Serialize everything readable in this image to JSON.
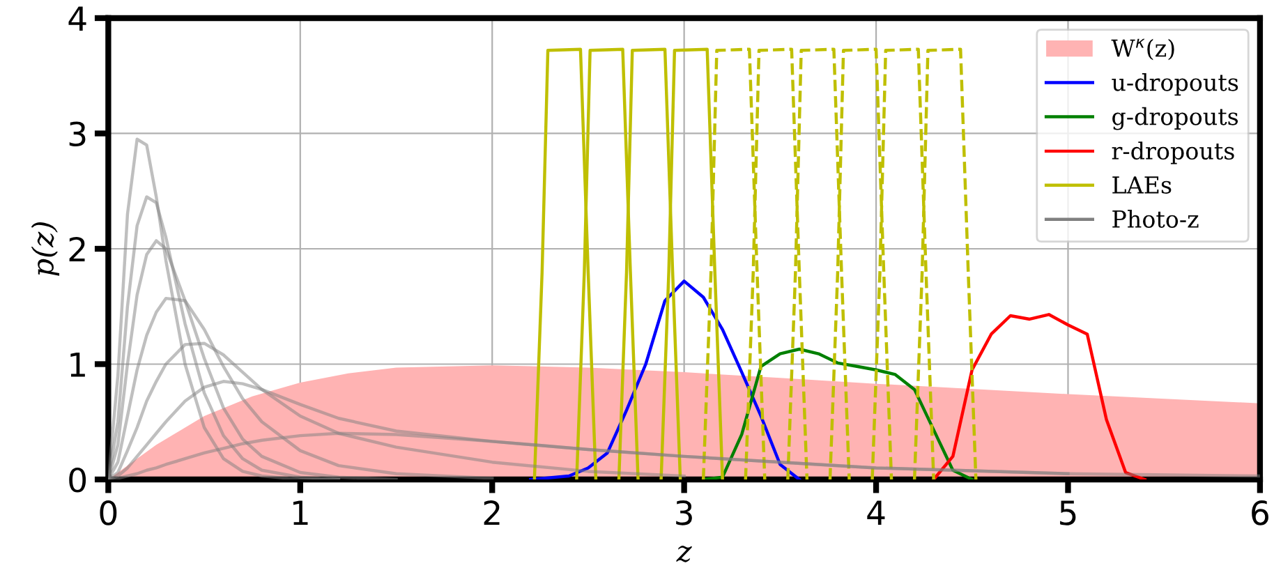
{
  "chart_data": {
    "type": "line",
    "xlabel": "z",
    "ylabel": "p(z)",
    "xlim": [
      0,
      6
    ],
    "ylim": [
      0,
      4
    ],
    "xticks": [
      0,
      1,
      2,
      3,
      4,
      5,
      6
    ],
    "yticks": [
      0,
      1,
      2,
      3,
      4
    ],
    "grid": true,
    "legend": "top right",
    "series": [
      {
        "type": "area",
        "name": "W$^{κ}$(z)",
        "color": "#ffb3b3",
        "x": [
          0,
          0.25,
          0.5,
          0.75,
          1,
          1.25,
          1.5,
          2,
          2.5,
          3,
          3.5,
          4,
          5,
          6
        ],
        "values": [
          0,
          0.3,
          0.55,
          0.72,
          0.84,
          0.92,
          0.97,
          0.99,
          0.97,
          0.93,
          0.88,
          0.83,
          0.74,
          0.66
        ]
      },
      {
        "type": "line",
        "name": "u-dropouts",
        "color": "#0000ff",
        "x": [
          2.2,
          2.4,
          2.5,
          2.6,
          2.7,
          2.8,
          2.9,
          3.0,
          3.1,
          3.2,
          3.3,
          3.4,
          3.5,
          3.6
        ],
        "values": [
          0,
          0.03,
          0.1,
          0.23,
          0.6,
          1.0,
          1.55,
          1.72,
          1.58,
          1.3,
          0.93,
          0.55,
          0.13,
          0
        ]
      },
      {
        "type": "line",
        "name": "g-dropouts",
        "color": "#008000",
        "x": [
          3.1,
          3.2,
          3.3,
          3.4,
          3.5,
          3.6,
          3.7,
          3.8,
          3.9,
          4.0,
          4.1,
          4.2,
          4.3,
          4.4,
          4.5
        ],
        "values": [
          0,
          0.02,
          0.39,
          0.98,
          1.09,
          1.13,
          1.09,
          1.01,
          0.98,
          0.95,
          0.91,
          0.78,
          0.43,
          0.08,
          0
        ]
      },
      {
        "type": "line",
        "name": "r-dropouts",
        "color": "#ff0000",
        "x": [
          4.3,
          4.4,
          4.5,
          4.6,
          4.7,
          4.8,
          4.9,
          5.0,
          5.1,
          5.2,
          5.3,
          5.4
        ],
        "values": [
          0,
          0.2,
          0.95,
          1.26,
          1.42,
          1.39,
          1.43,
          1.34,
          1.26,
          0.52,
          0.06,
          0
        ]
      },
      {
        "type": "line",
        "name": "LAEs",
        "color": "#bfbf00",
        "line_style": "solid",
        "x": [
          2.22,
          2.26,
          2.29,
          2.46,
          2.5,
          2.54
        ],
        "values": [
          0,
          1.8,
          3.72,
          3.73,
          1.8,
          0
        ]
      },
      {
        "type": "line",
        "color": "#bfbf00",
        "line_style": "solid",
        "x": [
          2.44,
          2.48,
          2.51,
          2.68,
          2.72,
          2.76
        ],
        "values": [
          0,
          1.8,
          3.72,
          3.73,
          1.8,
          0
        ]
      },
      {
        "type": "line",
        "color": "#bfbf00",
        "line_style": "solid",
        "x": [
          2.66,
          2.7,
          2.73,
          2.9,
          2.94,
          2.98
        ],
        "values": [
          0,
          1.8,
          3.72,
          3.73,
          1.8,
          0
        ]
      },
      {
        "type": "line",
        "color": "#bfbf00",
        "line_style": "solid",
        "x": [
          2.88,
          2.92,
          2.95,
          3.12,
          3.16,
          3.2
        ],
        "values": [
          0,
          1.8,
          3.72,
          3.73,
          1.8,
          0
        ]
      },
      {
        "type": "line",
        "color": "#bfbf00",
        "line_style": "dashed",
        "x": [
          3.1,
          3.14,
          3.17,
          3.34,
          3.38,
          3.42
        ],
        "values": [
          0,
          1.8,
          3.72,
          3.73,
          1.8,
          0
        ]
      },
      {
        "type": "line",
        "color": "#bfbf00",
        "line_style": "dashed",
        "x": [
          3.32,
          3.36,
          3.39,
          3.56,
          3.6,
          3.64
        ],
        "values": [
          0,
          1.8,
          3.72,
          3.73,
          1.8,
          0
        ]
      },
      {
        "type": "line",
        "color": "#bfbf00",
        "line_style": "dashed",
        "x": [
          3.54,
          3.58,
          3.61,
          3.78,
          3.82,
          3.86
        ],
        "values": [
          0,
          1.8,
          3.72,
          3.73,
          1.8,
          0
        ]
      },
      {
        "type": "line",
        "color": "#bfbf00",
        "line_style": "dashed",
        "x": [
          3.76,
          3.8,
          3.83,
          4.0,
          4.04,
          4.08
        ],
        "values": [
          0,
          1.8,
          3.72,
          3.73,
          1.8,
          0
        ]
      },
      {
        "type": "line",
        "color": "#bfbf00",
        "line_style": "dashed",
        "x": [
          3.98,
          4.02,
          4.05,
          4.22,
          4.26,
          4.3
        ],
        "values": [
          0,
          1.8,
          3.72,
          3.73,
          1.8,
          0
        ]
      },
      {
        "type": "line",
        "color": "#bfbf00",
        "line_style": "dashed",
        "x": [
          4.2,
          4.24,
          4.27,
          4.44,
          4.48,
          4.52
        ],
        "values": [
          0,
          1.8,
          3.72,
          3.73,
          1.8,
          0
        ]
      },
      {
        "type": "line",
        "name": "Photo-z",
        "color": "#808080",
        "x": [
          0,
          0.05,
          0.1,
          0.15,
          0.2,
          0.25,
          0.3,
          0.4,
          0.5,
          0.6,
          0.7,
          0.8,
          1.0,
          1.2
        ],
        "values": [
          0,
          0.9,
          2.3,
          2.95,
          2.9,
          2.45,
          1.9,
          1.0,
          0.45,
          0.18,
          0.07,
          0.03,
          0,
          0
        ]
      },
      {
        "type": "line",
        "color": "#808080",
        "x": [
          0,
          0.05,
          0.1,
          0.15,
          0.2,
          0.25,
          0.3,
          0.4,
          0.5,
          0.6,
          0.7,
          0.8,
          1.0,
          1.2
        ],
        "values": [
          0,
          0.5,
          1.5,
          2.2,
          2.45,
          2.4,
          2.1,
          1.35,
          0.75,
          0.38,
          0.18,
          0.08,
          0.02,
          0
        ]
      },
      {
        "type": "line",
        "color": "#808080",
        "x": [
          0,
          0.05,
          0.1,
          0.15,
          0.2,
          0.25,
          0.3,
          0.4,
          0.5,
          0.6,
          0.7,
          0.8,
          1.0,
          1.2,
          1.5
        ],
        "values": [
          0,
          0.3,
          1.0,
          1.6,
          1.95,
          2.07,
          2.0,
          1.55,
          1.05,
          0.62,
          0.35,
          0.2,
          0.06,
          0.02,
          0
        ]
      },
      {
        "type": "line",
        "color": "#808080",
        "x": [
          0,
          0.05,
          0.1,
          0.15,
          0.2,
          0.25,
          0.3,
          0.4,
          0.5,
          0.6,
          0.7,
          0.8,
          1.0,
          1.2,
          1.5,
          2
        ],
        "values": [
          0,
          0.15,
          0.55,
          0.95,
          1.25,
          1.45,
          1.57,
          1.55,
          1.3,
          0.98,
          0.7,
          0.5,
          0.25,
          0.12,
          0.05,
          0.01
        ]
      },
      {
        "type": "line",
        "color": "#808080",
        "x": [
          0,
          0.05,
          0.1,
          0.15,
          0.2,
          0.25,
          0.3,
          0.4,
          0.5,
          0.6,
          0.7,
          0.8,
          1.0,
          1.2,
          1.5,
          2,
          2.5,
          3
        ],
        "values": [
          0,
          0.06,
          0.25,
          0.45,
          0.68,
          0.85,
          1.0,
          1.17,
          1.18,
          1.08,
          0.93,
          0.78,
          0.55,
          0.4,
          0.28,
          0.15,
          0.07,
          0.03
        ]
      },
      {
        "type": "line",
        "color": "#808080",
        "x": [
          0,
          0.05,
          0.1,
          0.15,
          0.2,
          0.25,
          0.3,
          0.4,
          0.5,
          0.6,
          0.7,
          0.8,
          1.0,
          1.2,
          1.5,
          2,
          2.5,
          3,
          4,
          5,
          6
        ],
        "values": [
          0,
          0.03,
          0.1,
          0.2,
          0.3,
          0.4,
          0.5,
          0.68,
          0.8,
          0.85,
          0.83,
          0.78,
          0.65,
          0.53,
          0.42,
          0.33,
          0.26,
          0.2,
          0.1,
          0.05,
          0.03
        ]
      },
      {
        "type": "line",
        "color": "#808080",
        "x": [
          0,
          0.05,
          0.1,
          0.15,
          0.2,
          0.25,
          0.3,
          0.4,
          0.5,
          0.6,
          0.7,
          0.8,
          1.0,
          1.2,
          1.5,
          2,
          2.5,
          3,
          4,
          5
        ],
        "values": [
          0,
          0.01,
          0.03,
          0.05,
          0.08,
          0.1,
          0.13,
          0.18,
          0.23,
          0.27,
          0.31,
          0.34,
          0.38,
          0.4,
          0.39,
          0.33,
          0.26,
          0.2,
          0.1,
          0.05
        ]
      }
    ]
  }
}
